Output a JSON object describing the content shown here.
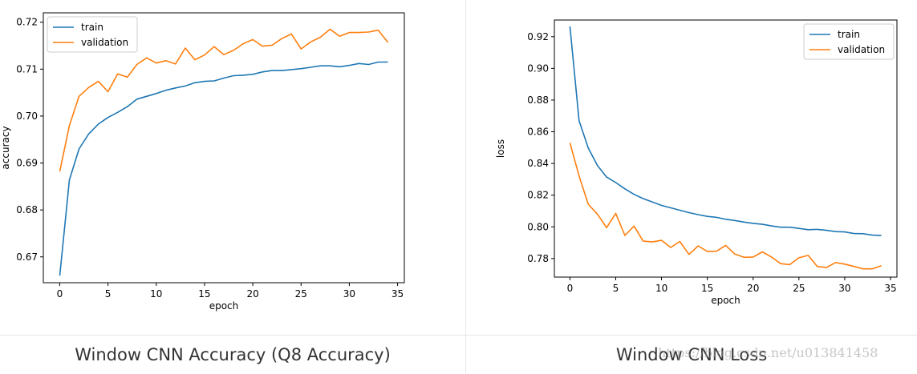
{
  "captions": [
    "Window CNN Accuracy (Q8 Accuracy)",
    "Window CNN Loss"
  ],
  "watermark": "https://blog.csdn.net/u013841458",
  "colors": {
    "train": "#1f77b4",
    "validation": "#ff7f0e"
  },
  "chart_data": [
    {
      "type": "line",
      "title": "",
      "xlabel": "epoch",
      "ylabel": "accuracy",
      "xlim": [
        -1.7,
        35.7
      ],
      "ylim": [
        0.6645,
        0.722
      ],
      "xticks": [
        0,
        5,
        10,
        15,
        20,
        25,
        30,
        35
      ],
      "yticks": [
        0.67,
        0.68,
        0.69,
        0.7,
        0.71,
        0.72
      ],
      "ytick_labels": [
        "0.67",
        "0.68",
        "0.69",
        "0.70",
        "0.71",
        "0.72"
      ],
      "legend": "upper left",
      "grid": false,
      "x": [
        0,
        1,
        2,
        3,
        4,
        5,
        6,
        7,
        8,
        9,
        10,
        11,
        12,
        13,
        14,
        15,
        16,
        17,
        18,
        19,
        20,
        21,
        22,
        23,
        24,
        25,
        26,
        27,
        28,
        29,
        30,
        31,
        32,
        33,
        34
      ],
      "series": [
        {
          "name": "train",
          "values": [
            0.666,
            0.6864,
            0.693,
            0.6962,
            0.6983,
            0.6997,
            0.7008,
            0.702,
            0.7036,
            0.7042,
            0.7048,
            0.7055,
            0.706,
            0.7064,
            0.7071,
            0.7074,
            0.7075,
            0.7081,
            0.7086,
            0.7087,
            0.7089,
            0.7094,
            0.7097,
            0.7097,
            0.7099,
            0.7101,
            0.7104,
            0.7107,
            0.7107,
            0.7105,
            0.7108,
            0.7112,
            0.711,
            0.7115,
            0.7115
          ]
        },
        {
          "name": "validation",
          "values": [
            0.6882,
            0.698,
            0.7042,
            0.7061,
            0.7074,
            0.7052,
            0.709,
            0.7083,
            0.711,
            0.7124,
            0.7113,
            0.7118,
            0.7111,
            0.7145,
            0.712,
            0.713,
            0.7148,
            0.7131,
            0.714,
            0.7154,
            0.7163,
            0.7149,
            0.7151,
            0.7165,
            0.7175,
            0.7143,
            0.7158,
            0.7168,
            0.7185,
            0.717,
            0.7178,
            0.7178,
            0.7179,
            0.7183,
            0.7157
          ]
        }
      ]
    },
    {
      "type": "line",
      "title": "",
      "xlabel": "epoch",
      "ylabel": "loss",
      "xlim": [
        -1.7,
        35.7
      ],
      "ylim": [
        0.7683,
        0.9305
      ],
      "xticks": [
        0,
        5,
        10,
        15,
        20,
        25,
        30,
        35
      ],
      "yticks": [
        0.78,
        0.8,
        0.82,
        0.84,
        0.86,
        0.88,
        0.9,
        0.92
      ],
      "ytick_labels": [
        "0.78",
        "0.80",
        "0.82",
        "0.84",
        "0.86",
        "0.88",
        "0.90",
        "0.92"
      ],
      "legend": "upper right",
      "grid": false,
      "x": [
        0,
        1,
        2,
        3,
        4,
        5,
        6,
        7,
        8,
        9,
        10,
        11,
        12,
        13,
        14,
        15,
        16,
        17,
        18,
        19,
        20,
        21,
        22,
        23,
        24,
        25,
        26,
        27,
        28,
        29,
        30,
        31,
        32,
        33,
        34
      ],
      "series": [
        {
          "name": "train",
          "values": [
            0.9265,
            0.867,
            0.8498,
            0.8387,
            0.8314,
            0.828,
            0.824,
            0.8205,
            0.8178,
            0.8157,
            0.8135,
            0.812,
            0.8105,
            0.809,
            0.8077,
            0.8066,
            0.806,
            0.8048,
            0.804,
            0.803,
            0.8022,
            0.8016,
            0.8006,
            0.7998,
            0.7998,
            0.799,
            0.7982,
            0.7984,
            0.7978,
            0.797,
            0.7968,
            0.7958,
            0.7957,
            0.7948,
            0.7945
          ]
        },
        {
          "name": "validation",
          "values": [
            0.853,
            0.8321,
            0.8143,
            0.808,
            0.7995,
            0.8085,
            0.7946,
            0.8005,
            0.791,
            0.7905,
            0.7915,
            0.787,
            0.7908,
            0.7826,
            0.788,
            0.7844,
            0.7846,
            0.7883,
            0.7828,
            0.7808,
            0.781,
            0.7842,
            0.781,
            0.7768,
            0.7762,
            0.7805,
            0.782,
            0.775,
            0.7743,
            0.7775,
            0.7765,
            0.775,
            0.7735,
            0.7735,
            0.7755
          ]
        }
      ]
    }
  ]
}
